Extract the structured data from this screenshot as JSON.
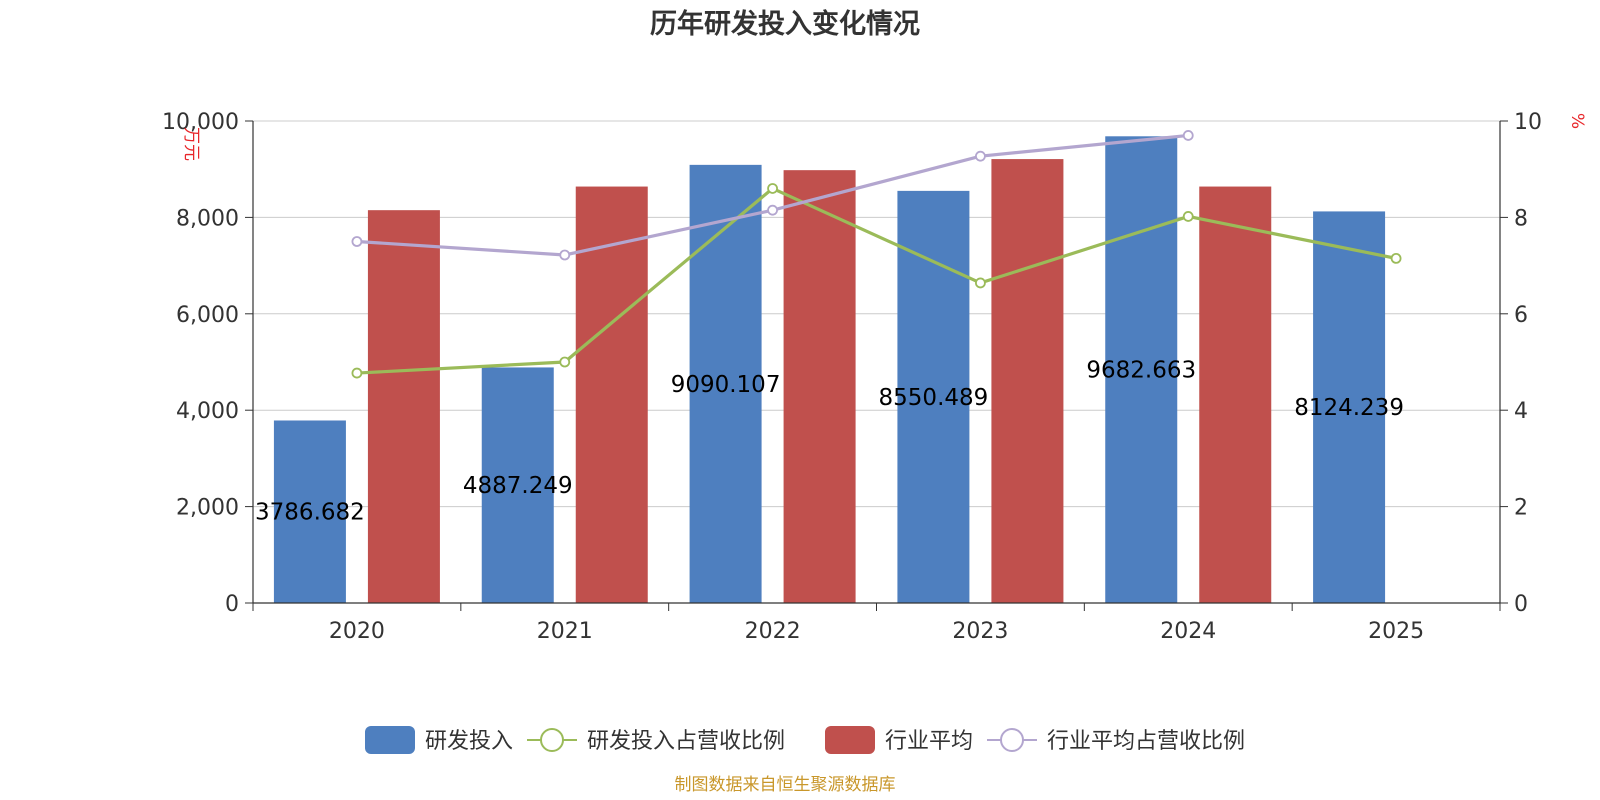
{
  "chart_data": {
    "type": "bar",
    "title": "历年研发投入变化情况",
    "categories": [
      "2020",
      "2021",
      "2022",
      "2023",
      "2024",
      "2025"
    ],
    "y_left": {
      "unit": "万元",
      "min": 0,
      "max": 10000,
      "ticks": [
        "0",
        "2,000",
        "4,000",
        "6,000",
        "8,000",
        "10,000"
      ]
    },
    "y_right": {
      "unit": "%",
      "min": 0,
      "max": 10,
      "ticks": [
        "0",
        "2",
        "4",
        "6",
        "8",
        "10"
      ]
    },
    "series": [
      {
        "name": "研发投入",
        "kind": "bar",
        "axis": "left",
        "color": "#4e7fbf",
        "values": [
          3786.682,
          4887.249,
          9090.107,
          8550.489,
          9682.663,
          8124.239
        ],
        "labels": [
          "3786.682",
          "4887.249",
          "9090.107",
          "8550.489",
          "9682.663",
          "8124.239"
        ]
      },
      {
        "name": "研发投入占营收比例",
        "kind": "line",
        "axis": "right",
        "color": "#9bbb59",
        "values": [
          4.77,
          5.0,
          8.6,
          6.64,
          8.02,
          7.15
        ]
      },
      {
        "name": "行业平均",
        "kind": "bar",
        "axis": "left",
        "color": "#c0504d",
        "values": [
          8150,
          8640,
          8980,
          9210,
          8640,
          null
        ]
      },
      {
        "name": "行业平均占营收比例",
        "kind": "line",
        "axis": "right",
        "color": "#b3a6cf",
        "values": [
          7.5,
          7.22,
          8.15,
          9.27,
          9.7,
          null
        ]
      }
    ],
    "grid": true,
    "legend_position": "bottom"
  },
  "source_text": "制图数据来自恒生聚源数据库"
}
